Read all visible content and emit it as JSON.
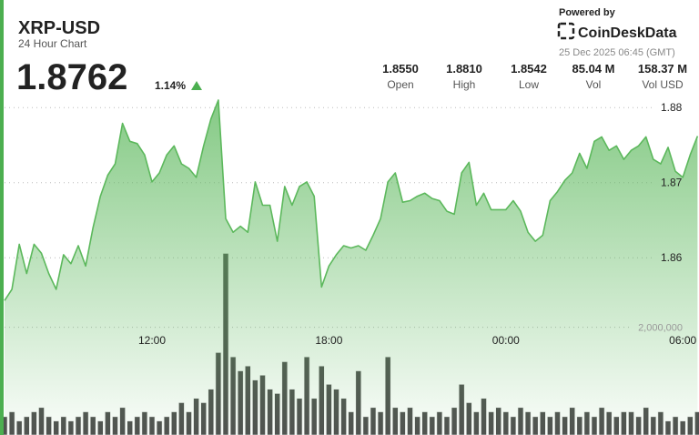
{
  "chart_data": {
    "type": "line",
    "title": "XRP-USD",
    "subtitle": "24 Hour Chart",
    "last_price": "1.8762",
    "change": "1.14%",
    "stats": [
      {
        "value": "1.8550",
        "label": "Open"
      },
      {
        "value": "1.8810",
        "label": "High"
      },
      {
        "value": "1.8542",
        "label": "Low"
      },
      {
        "value": "85.04 M",
        "label": "Vol"
      },
      {
        "value": "158.37 M",
        "label": "Vol USD"
      }
    ],
    "powered_by": "Powered by",
    "brand": "CoinDeskData",
    "timestamp": "25 Dec 2025 06:45 (GMT)",
    "categories": [
      null,
      null,
      null,
      null,
      null,
      null,
      null,
      null,
      null,
      null,
      null,
      null,
      null,
      null,
      null,
      null,
      null,
      null,
      null,
      null,
      "12:00",
      null,
      null,
      null,
      null,
      null,
      null,
      null,
      null,
      null,
      null,
      null,
      null,
      null,
      null,
      null,
      null,
      null,
      null,
      null,
      null,
      null,
      null,
      null,
      "18:00",
      null,
      null,
      null,
      null,
      null,
      null,
      null,
      null,
      null,
      null,
      null,
      null,
      null,
      null,
      null,
      null,
      null,
      null,
      null,
      null,
      null,
      null,
      null,
      "00:00",
      null,
      null,
      null,
      null,
      null,
      null,
      null,
      null,
      null,
      null,
      null,
      null,
      null,
      null,
      null,
      null,
      null,
      null,
      null,
      null,
      null,
      null,
      null,
      "06:00",
      null,
      null
    ],
    "series": [
      {
        "color": "#5cb85c",
        "values": [
          1.8543,
          1.8558,
          1.8618,
          1.8579,
          1.8618,
          1.8606,
          1.8579,
          1.8558,
          1.8604,
          1.8592,
          1.8616,
          1.8589,
          1.864,
          1.8682,
          1.871,
          1.8725,
          1.8779,
          1.8755,
          1.8752,
          1.8737,
          1.8701,
          1.8713,
          1.8737,
          1.8749,
          1.8725,
          1.8719,
          1.8707,
          1.8749,
          1.8785,
          1.881,
          1.8652,
          1.8634,
          1.8642,
          1.8634,
          1.8701,
          1.867,
          1.867,
          1.8622,
          1.8695,
          1.867,
          1.8695,
          1.8701,
          1.8682,
          1.8561,
          1.8589,
          1.8604,
          1.8616,
          1.8613,
          1.8616,
          1.861,
          1.863,
          1.8652,
          1.8701,
          1.8713,
          1.8674,
          1.8676,
          1.8682,
          1.8686,
          1.8679,
          1.8676,
          1.8662,
          1.8658,
          1.8713,
          1.8727,
          1.867,
          1.8686,
          1.8664,
          1.8664,
          1.8664,
          1.8676,
          1.8662,
          1.8634,
          1.8622,
          1.863,
          1.8676,
          1.8688,
          1.8703,
          1.8713,
          1.8739,
          1.8719,
          1.8755,
          1.8761,
          1.8743,
          1.8749,
          1.8731,
          1.8743,
          1.8749,
          1.8761,
          1.8731,
          1.8725,
          1.8747,
          1.8715,
          1.8707,
          1.8737,
          1.8762
        ]
      },
      {
        "type": "bar",
        "axis": "y2",
        "color": "#505050",
        "values": [
          340000,
          430000,
          260000,
          340000,
          430000,
          510000,
          340000,
          260000,
          340000,
          260000,
          340000,
          430000,
          340000,
          260000,
          430000,
          340000,
          510000,
          260000,
          340000,
          430000,
          340000,
          260000,
          340000,
          430000,
          600000,
          430000,
          680000,
          600000,
          850000,
          1530000,
          3370000,
          1450000,
          1190000,
          1280000,
          1020000,
          1110000,
          850000,
          770000,
          1360000,
          850000,
          680000,
          1450000,
          680000,
          1280000,
          940000,
          850000,
          680000,
          430000,
          1190000,
          340000,
          510000,
          430000,
          1450000,
          510000,
          430000,
          510000,
          340000,
          430000,
          340000,
          430000,
          340000,
          510000,
          940000,
          600000,
          430000,
          680000,
          430000,
          510000,
          430000,
          340000,
          510000,
          430000,
          340000,
          430000,
          340000,
          430000,
          340000,
          510000,
          340000,
          430000,
          340000,
          510000,
          430000,
          340000,
          430000,
          430000,
          340000,
          510000,
          340000,
          430000,
          260000,
          340000,
          260000,
          340000,
          430000
        ]
      }
    ],
    "ylim": [
      1.8364,
      1.8816
    ],
    "yticks": [
      1.86,
      1.87,
      1.88
    ],
    "y2lim": [
      0,
      6300000
    ],
    "y2ticks": [
      {
        "value": 2000000,
        "label": "2,000,000"
      }
    ],
    "grid": true
  }
}
